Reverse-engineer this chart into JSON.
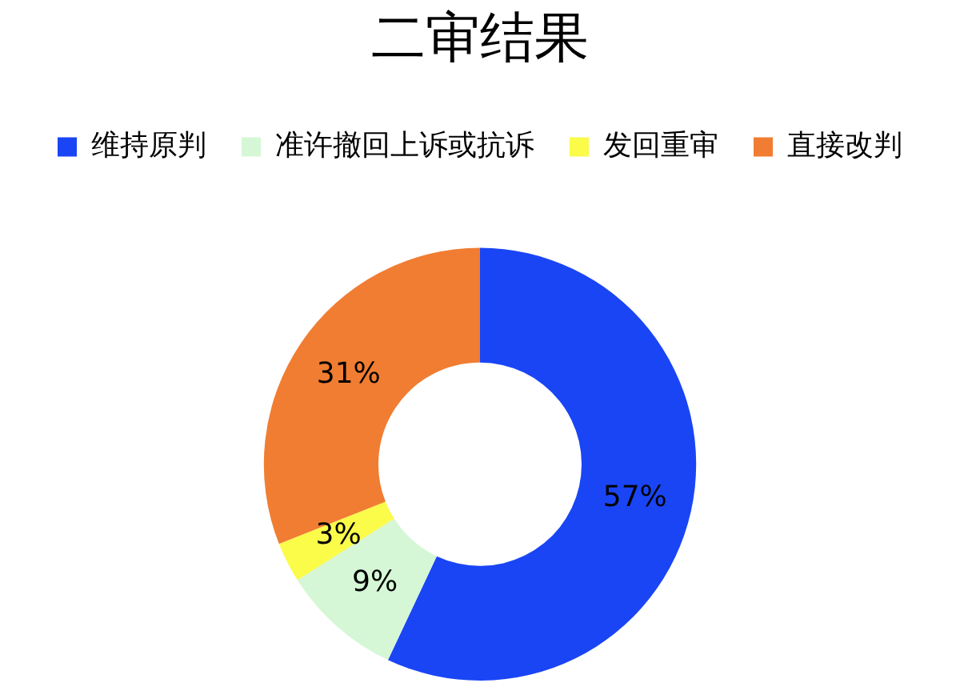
{
  "chart_data": {
    "type": "donut",
    "title": "二审结果",
    "categories": [
      "维持原判",
      "准许撤回上诉或抗诉",
      "发回重审",
      "直接改判"
    ],
    "values": [
      57,
      9,
      3,
      31
    ],
    "colors": [
      "#1a45f5",
      "#d5f7d5",
      "#fbfb4a",
      "#f07d32"
    ],
    "value_labels": [
      "57%",
      "9%",
      "3%",
      "31%"
    ],
    "legend": "top"
  }
}
